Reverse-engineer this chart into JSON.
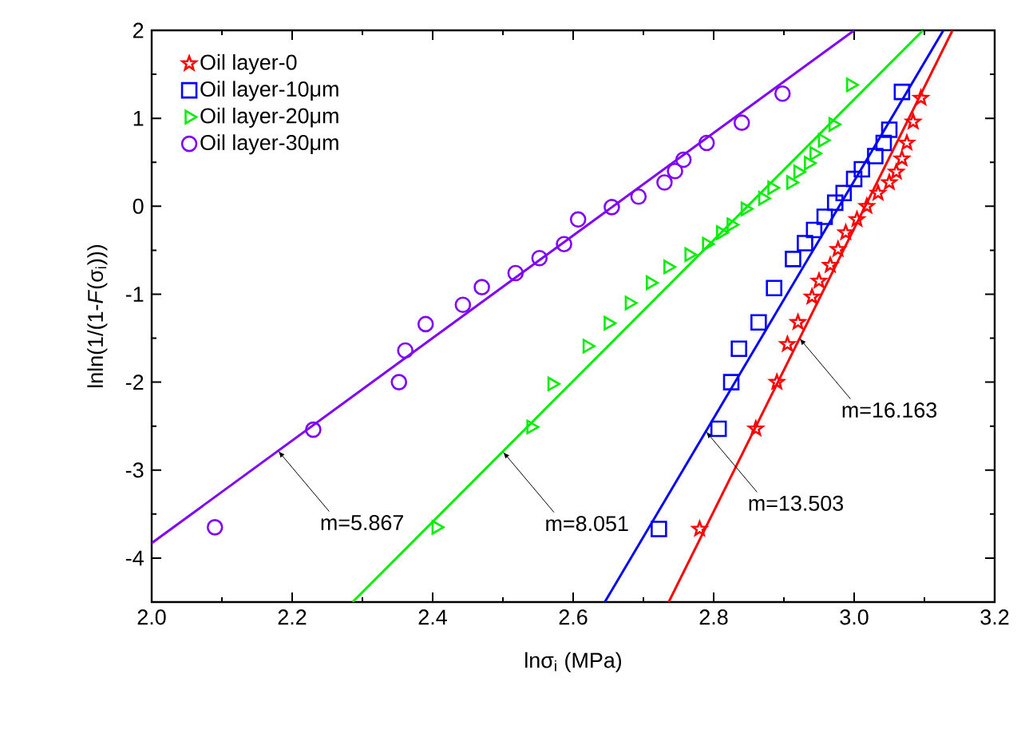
{
  "chart_data": {
    "type": "scatter",
    "xlabel": "lnσ$_{i}$ (MPa)",
    "ylabel": "lnln(1/(1-*F*(σ$_{i}$)))",
    "xlim": [
      2.0,
      3.2
    ],
    "ylim": [
      -4.5,
      2
    ],
    "xticks": [
      {
        "value": 2.0,
        "label": "2.0"
      },
      {
        "value": 2.2,
        "label": "2.2"
      },
      {
        "value": 2.4,
        "label": "2.4"
      },
      {
        "value": 2.6,
        "label": "2.6"
      },
      {
        "value": 2.8,
        "label": "2.8"
      },
      {
        "value": 3.0,
        "label": "3.0"
      },
      {
        "value": 3.2,
        "label": "3.2"
      }
    ],
    "yticks": [
      -4,
      -3,
      -2,
      -1,
      0,
      1,
      2
    ],
    "grid": false,
    "legend": "top left",
    "series": [
      {
        "name": "Oil layer-0",
        "color": "#ff0000",
        "marker": "star",
        "x": [
          2.78,
          2.86,
          2.89,
          2.905,
          2.92,
          2.94,
          2.95,
          2.966,
          2.977,
          2.988,
          3.004,
          3.018,
          3.034,
          3.05,
          3.06,
          3.068,
          3.075,
          3.084,
          3.095
        ],
        "values": [
          -3.67,
          -2.53,
          -2.0,
          -1.57,
          -1.32,
          -1.03,
          -0.85,
          -0.67,
          -0.49,
          -0.3,
          -0.15,
          0.0,
          0.15,
          0.27,
          0.39,
          0.54,
          0.72,
          0.96,
          1.23
        ]
      },
      {
        "name": "Oil layer-10μm",
        "color": "#0000ff",
        "marker": "square",
        "x": [
          2.722,
          2.807,
          2.825,
          2.836,
          2.864,
          2.886,
          2.913,
          2.93,
          2.943,
          2.958,
          2.973,
          2.985,
          3.0,
          3.011,
          3.03,
          3.042,
          3.05,
          3.068
        ],
        "values": [
          -3.67,
          -2.53,
          -2.0,
          -1.62,
          -1.32,
          -0.93,
          -0.6,
          -0.42,
          -0.27,
          -0.12,
          0.04,
          0.15,
          0.31,
          0.42,
          0.57,
          0.72,
          0.87,
          1.3
        ]
      },
      {
        "name": "Oil layer-20μm",
        "color": "#00ee00",
        "marker": "triangle",
        "x": [
          2.405,
          2.54,
          2.57,
          2.62,
          2.65,
          2.68,
          2.71,
          2.735,
          2.765,
          2.79,
          2.81,
          2.825,
          2.845,
          2.87,
          2.883,
          2.91,
          2.92,
          2.935,
          2.943,
          2.955,
          2.97,
          2.995
        ],
        "values": [
          -3.65,
          -2.51,
          -2.02,
          -1.59,
          -1.33,
          -1.1,
          -0.87,
          -0.69,
          -0.55,
          -0.43,
          -0.3,
          -0.21,
          -0.03,
          0.09,
          0.21,
          0.27,
          0.39,
          0.49,
          0.6,
          0.75,
          0.93,
          1.38
        ]
      },
      {
        "name": "Oil layer-30μm",
        "color": "#7f00ff",
        "marker": "circle",
        "x": [
          2.09,
          2.23,
          2.352,
          2.361,
          2.39,
          2.443,
          2.47,
          2.518,
          2.552,
          2.587,
          2.607,
          2.655,
          2.693,
          2.73,
          2.745,
          2.757,
          2.79,
          2.84,
          2.898
        ],
        "values": [
          -3.65,
          -2.54,
          -2.0,
          -1.64,
          -1.34,
          -1.12,
          -0.92,
          -0.76,
          -0.59,
          -0.43,
          -0.15,
          -0.01,
          0.11,
          0.27,
          0.4,
          0.53,
          0.72,
          0.95,
          1.28
        ]
      },
      {
        "type": "line",
        "color": "#ff0000",
        "x": [
          2.736,
          3.14
        ],
        "values": [
          -4.5,
          2
        ]
      },
      {
        "type": "line",
        "color": "#0000ff",
        "x": [
          2.645,
          3.127
        ],
        "values": [
          -4.5,
          2
        ]
      },
      {
        "type": "line",
        "color": "#00ee00",
        "x": [
          2.286,
          3.098
        ],
        "values": [
          -4.5,
          2
        ]
      },
      {
        "type": "line",
        "color": "#7f00ff",
        "x": [
          2.0,
          3.0
        ],
        "values": [
          -3.83,
          2
        ]
      }
    ],
    "annotations": [
      {
        "text": "m=5.867",
        "x": 2.18,
        "y": -2.78
      },
      {
        "text": "m=8.051",
        "x": 2.5,
        "y": -2.79
      },
      {
        "text": "m=13.503",
        "x": 2.789,
        "y": -2.56
      },
      {
        "text": "m=16.163",
        "x": 2.922,
        "y": -1.5
      }
    ]
  }
}
